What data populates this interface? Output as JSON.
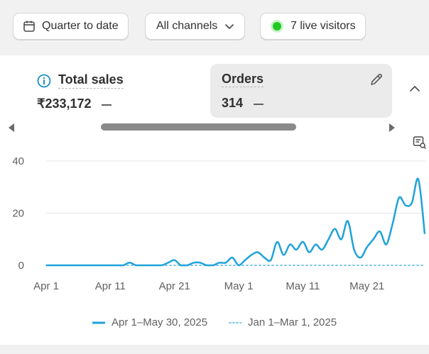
{
  "filters": {
    "date_range": "Quarter to date",
    "channels": "All channels",
    "live_visitors": "7 live visitors"
  },
  "metrics": {
    "total_sales": {
      "label": "Total sales",
      "value": "₹233,172"
    },
    "orders": {
      "label": "Orders",
      "value": "314"
    }
  },
  "colors": {
    "series_primary": "#1fa2da",
    "series_comparison": "#7fc7e6",
    "live_dot": "#22c922",
    "info_icon": "#1a8fc9"
  },
  "legend": {
    "primary": "Apr 1–May 30, 2025",
    "comparison": "Jan 1–Mar 1, 2025"
  },
  "chart_data": {
    "type": "line",
    "x": [
      "Apr 1",
      "Apr 2",
      "Apr 3",
      "Apr 4",
      "Apr 5",
      "Apr 6",
      "Apr 7",
      "Apr 8",
      "Apr 9",
      "Apr 10",
      "Apr 11",
      "Apr 12",
      "Apr 13",
      "Apr 14",
      "Apr 15",
      "Apr 16",
      "Apr 17",
      "Apr 18",
      "Apr 19",
      "Apr 20",
      "Apr 21",
      "Apr 22",
      "Apr 23",
      "Apr 24",
      "Apr 25",
      "Apr 26",
      "Apr 27",
      "Apr 28",
      "Apr 29",
      "Apr 30",
      "May 1",
      "May 2",
      "May 3",
      "May 4",
      "May 5",
      "May 6",
      "May 7",
      "May 8",
      "May 9",
      "May 10",
      "May 11",
      "May 12",
      "May 13",
      "May 14",
      "May 15",
      "May 16",
      "May 17",
      "May 18",
      "May 19",
      "May 20",
      "May 21",
      "May 22",
      "May 23",
      "May 24",
      "May 25",
      "May 26",
      "May 27",
      "May 28",
      "May 29",
      "May 30"
    ],
    "x_tick_labels": [
      "Apr 1",
      "Apr 11",
      "Apr 21",
      "May 1",
      "May 11",
      "May 21"
    ],
    "series": [
      {
        "name": "Apr 1–May 30, 2025",
        "style": "solid",
        "values": [
          0,
          0,
          0,
          0,
          0,
          0,
          0,
          0,
          0,
          0,
          0,
          0,
          0,
          1,
          0,
          0,
          0,
          0,
          0,
          1,
          2,
          0,
          0,
          1,
          1,
          0,
          0,
          1,
          1,
          3,
          0,
          2,
          4,
          5,
          3,
          2,
          9,
          4,
          8,
          6,
          9,
          5,
          8,
          6,
          10,
          14,
          10,
          17,
          6,
          3,
          7,
          10,
          13,
          8,
          16,
          26,
          23,
          24,
          33,
          12
        ]
      },
      {
        "name": "Jan 1–Mar 1, 2025",
        "style": "dotted",
        "values": [
          0,
          0,
          0,
          0,
          0,
          0,
          0,
          0,
          0,
          0,
          0,
          0,
          0,
          0,
          0,
          0,
          0,
          0,
          0,
          0,
          0,
          0,
          0,
          0,
          0,
          0,
          0,
          0,
          0,
          0,
          0,
          0,
          0,
          0,
          0,
          0,
          0,
          0,
          0,
          0,
          0,
          0,
          0,
          0,
          0,
          0,
          0,
          0,
          0,
          0,
          0,
          0,
          0,
          0,
          0,
          0,
          0,
          0,
          0,
          0
        ]
      }
    ],
    "y_ticks": [
      0,
      20,
      40
    ],
    "ylim": [
      0,
      40
    ],
    "title": "",
    "xlabel": "",
    "ylabel": "",
    "grid": true,
    "legend_position": "bottom-center"
  }
}
